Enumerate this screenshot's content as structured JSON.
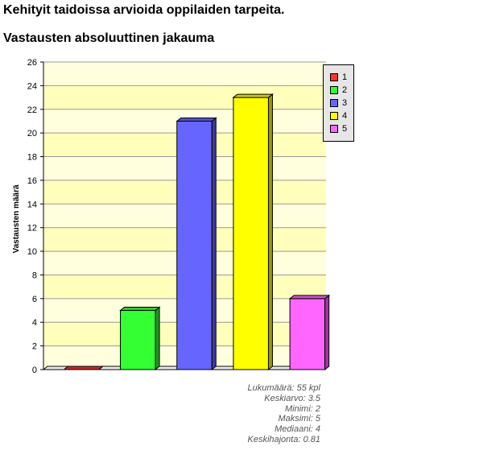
{
  "page": {
    "title": "Kehityit taidoissa arvioida oppilaiden tarpeita."
  },
  "chart_data": {
    "type": "bar",
    "title": "Vastausten absoluuttinen jakauma",
    "xlabel": "",
    "ylabel": "Vastausten määrä",
    "ylim": [
      0,
      26
    ],
    "yticks": [
      "0",
      "2",
      "4",
      "6",
      "8",
      "10",
      "12",
      "14",
      "16",
      "18",
      "20",
      "22",
      "24",
      "26"
    ],
    "categories": [
      "1",
      "2",
      "3",
      "4",
      "5"
    ],
    "values": [
      0,
      5,
      21,
      23,
      6
    ],
    "colors": [
      "#ff3333",
      "#33ff33",
      "#6666ff",
      "#ffff00",
      "#ff66ff"
    ],
    "side_colors": [
      "#991f1f",
      "#1f991f",
      "#3d3d99",
      "#999900",
      "#993d99"
    ],
    "top_colors": [
      "#cc2929",
      "#29cc29",
      "#5252cc",
      "#cccc00",
      "#cc52cc"
    ],
    "grid": true,
    "background_colors": [
      "#ffffdd",
      "#ffffbb"
    ],
    "legend_position": "top-right"
  },
  "legend": {
    "items": [
      {
        "label": "1",
        "color": "#ff3333"
      },
      {
        "label": "2",
        "color": "#33ff33"
      },
      {
        "label": "3",
        "color": "#6666ff"
      },
      {
        "label": "4",
        "color": "#ffff00"
      },
      {
        "label": "5",
        "color": "#ff66ff"
      }
    ]
  },
  "stats": {
    "lines": [
      "Lukumäärä: 55 kpl",
      "Keskiarvo: 3.5",
      "Minimi: 2",
      "Maksimi: 5",
      "Mediaani: 4",
      "Keskihajonta: 0.81"
    ]
  }
}
